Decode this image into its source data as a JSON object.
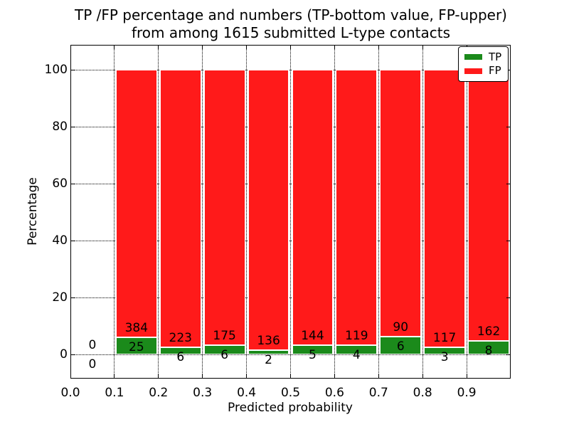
{
  "chart_data": {
    "type": "bar",
    "stacked": true,
    "normalized_to_percent": true,
    "title_lines": [
      "TP /FP percentage and numbers (TP-bottom value, FP-upper)",
      "from among 1615 submitted L-type contacts"
    ],
    "xlabel": "Predicted probability",
    "ylabel": "Percentage",
    "xlim": [
      0.0,
      1.0
    ],
    "ylim": [
      -8.5,
      108.75
    ],
    "xtick_labels": [
      "0.0",
      "0.1",
      "0.2",
      "0.3",
      "0.4",
      "0.5",
      "0.6",
      "0.7",
      "0.8",
      "0.9"
    ],
    "ytick_labels": [
      "0",
      "20",
      "40",
      "60",
      "80",
      "100"
    ],
    "grid": "dotted",
    "total_contacts": 1615,
    "legend": {
      "position": "upper right",
      "entries": [
        {
          "label": "TP",
          "color": "#1b8a1b"
        },
        {
          "label": "FP",
          "color": "#ff1a1a"
        }
      ]
    },
    "colors": {
      "tp": "#1b8a1b",
      "fp": "#ff1a1a",
      "bar_edge": "#ffffff",
      "text": "#000000"
    },
    "bins": [
      {
        "range": [
          0.0,
          0.1
        ],
        "tp": 0,
        "fp": 0
      },
      {
        "range": [
          0.1,
          0.2
        ],
        "tp": 25,
        "fp": 384
      },
      {
        "range": [
          0.2,
          0.3
        ],
        "tp": 6,
        "fp": 223
      },
      {
        "range": [
          0.3,
          0.4
        ],
        "tp": 6,
        "fp": 175
      },
      {
        "range": [
          0.4,
          0.5
        ],
        "tp": 2,
        "fp": 136
      },
      {
        "range": [
          0.5,
          0.6
        ],
        "tp": 5,
        "fp": 144
      },
      {
        "range": [
          0.6,
          0.7
        ],
        "tp": 4,
        "fp": 119
      },
      {
        "range": [
          0.7,
          0.8
        ],
        "tp": 6,
        "fp": 90
      },
      {
        "range": [
          0.8,
          0.9
        ],
        "tp": 3,
        "fp": 117
      },
      {
        "range": [
          0.9,
          1.0
        ],
        "tp": 8,
        "fp": 162
      }
    ]
  }
}
